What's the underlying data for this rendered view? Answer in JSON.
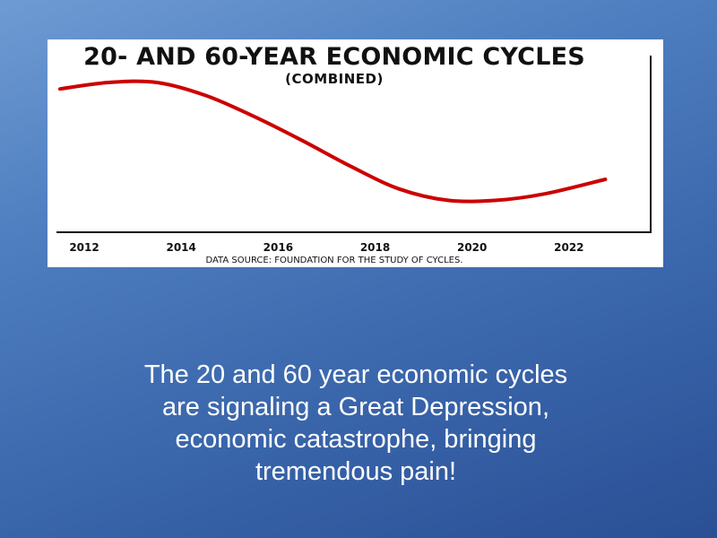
{
  "chart_data": {
    "type": "line",
    "title": "20- AND 60-YEAR ECONOMIC CYCLES",
    "subtitle": "(COMBINED)",
    "source": "DATA SOURCE: FOUNDATION FOR THE STUDY OF CYCLES.",
    "xlabel": "",
    "ylabel": "",
    "x_ticks": [
      "2012",
      "2014",
      "2016",
      "2018",
      "2020",
      "2022"
    ],
    "xlim": [
      2011.5,
      2024.0
    ],
    "ylim": [
      0,
      1
    ],
    "y_ticks_shown": false,
    "grid": false,
    "line_color": "#cc0000",
    "series": [
      {
        "x": [
          2011.5,
          2012.5,
          2013.5,
          2014.5,
          2015.5,
          2016.5,
          2017.5,
          2018.5,
          2019.5,
          2020.5,
          2021.5,
          2022.75
        ],
        "y": [
          0.86,
          0.9,
          0.9,
          0.82,
          0.69,
          0.54,
          0.38,
          0.24,
          0.17,
          0.17,
          0.21,
          0.3
        ]
      }
    ]
  },
  "caption": {
    "line1": "The 20 and 60 year economic cycles",
    "line2": "are signaling a Great Depression,",
    "line3": "economic catastrophe, bringing",
    "line4": "tremendous pain!"
  }
}
